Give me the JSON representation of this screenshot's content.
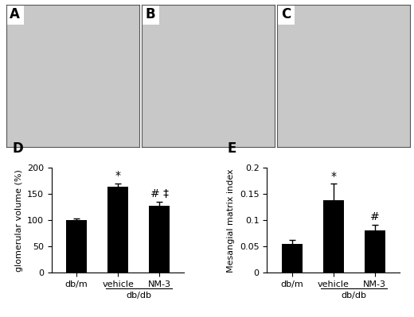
{
  "panels": [
    "A",
    "B",
    "C"
  ],
  "chart_data": [
    {
      "type": "bar",
      "panel_label": "D",
      "y_label": "glomerular volume (%)",
      "categories": [
        "db/m",
        "vehicle",
        "NM-3"
      ],
      "values": [
        100,
        165,
        128
      ],
      "errors": [
        3,
        6,
        8
      ],
      "color": "#000000",
      "groups": [
        {
          "label": "db/db",
          "categories": [
            "vehicle",
            "NM-3"
          ]
        }
      ],
      "annotations": [
        {
          "category": "vehicle",
          "text": "*"
        },
        {
          "category": "NM-3",
          "text": "# ‡"
        }
      ],
      "ylim": [
        0,
        200
      ],
      "yticks": [
        0,
        50,
        100,
        150,
        200
      ]
    },
    {
      "type": "bar",
      "panel_label": "E",
      "y_label": "Mesangial matrix index",
      "categories": [
        "db/m",
        "vehicle",
        "NM-3"
      ],
      "values": [
        0.055,
        0.138,
        0.08
      ],
      "errors": [
        0.008,
        0.032,
        0.012
      ],
      "color": "#000000",
      "groups": [
        {
          "label": "db/db",
          "categories": [
            "vehicle",
            "NM-3"
          ]
        }
      ],
      "annotations": [
        {
          "category": "vehicle",
          "text": "*"
        },
        {
          "category": "NM-3",
          "text": "#"
        }
      ],
      "ylim": [
        0,
        0.2
      ],
      "yticks": [
        0,
        0.05,
        0.1,
        0.15,
        0.2
      ]
    }
  ]
}
